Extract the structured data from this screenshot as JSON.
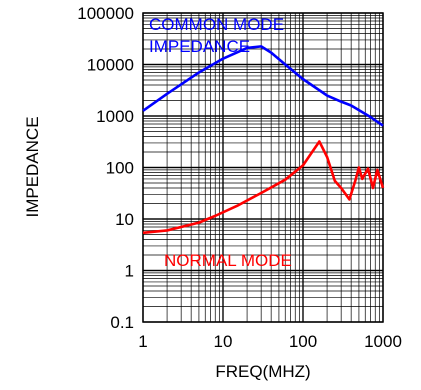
{
  "chart_data": {
    "type": "line",
    "xlabel": "FREQ(MHZ)",
    "ylabel": "IMPEDANCE",
    "x_scale": "log",
    "y_scale": "log",
    "xlim": [
      1,
      1000
    ],
    "ylim": [
      0.1,
      100000
    ],
    "grid": true,
    "x_ticks": [
      "1",
      "10",
      "100",
      "1000"
    ],
    "y_ticks": [
      "0.1",
      "1",
      "10",
      "100",
      "1000",
      "10000",
      "100000"
    ],
    "series": [
      {
        "name": "COMMON MODE IMPEDANCE",
        "color": "#0000ff",
        "x": [
          1,
          2,
          5,
          10,
          20,
          30,
          40,
          60,
          100,
          200,
          300,
          400,
          500,
          700,
          1000
        ],
        "y": [
          1260,
          2700,
          7000,
          13000,
          21000,
          22500,
          17000,
          10000,
          5200,
          2500,
          1900,
          1600,
          1300,
          950,
          650
        ]
      },
      {
        "name": "NORMAL MODE",
        "color": "#ff0000",
        "x": [
          1,
          2,
          5,
          8,
          15,
          30,
          60,
          100,
          130,
          160,
          200,
          250,
          300,
          380,
          450,
          500,
          550,
          650,
          750,
          850,
          1000
        ],
        "y": [
          5.4,
          6,
          8.5,
          11.5,
          18,
          32,
          58,
          110,
          200,
          320,
          160,
          55,
          40,
          24,
          55,
          100,
          60,
          95,
          40,
          90,
          40
        ]
      }
    ]
  }
}
